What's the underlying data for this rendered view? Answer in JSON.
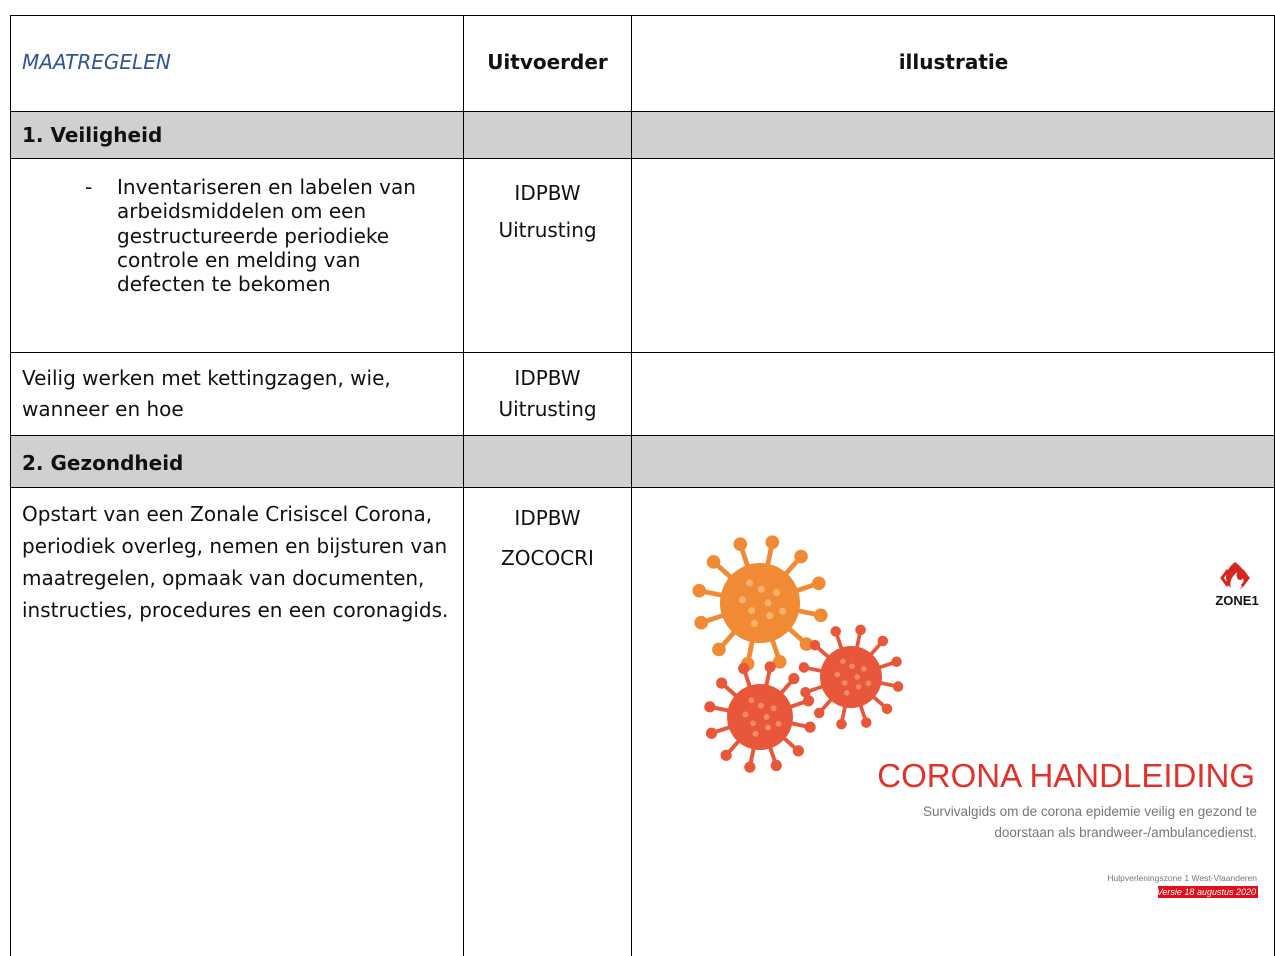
{
  "table": {
    "header": {
      "maatregelen": "MAATREGELEN",
      "uitvoerder": "Uitvoerder",
      "illustratie": "illustratie"
    },
    "sections": [
      {
        "title": "1. Veiligheid",
        "rows": [
          {
            "bullet": "-",
            "maatregel": "Inventariseren en labelen van arbeidsmiddelen om een gestructureerde periodieke controle en melding van defecten te bekomen",
            "uitvoerder": [
              "IDPBW",
              "Uitrusting"
            ]
          },
          {
            "maatregel": "Veilig werken met kettingzagen, wie, wanneer en hoe",
            "uitvoerder": [
              "IDPBW",
              "Uitrusting"
            ]
          }
        ]
      },
      {
        "title": "2. Gezondheid",
        "rows": [
          {
            "maatregel": "Opstart van een Zonale Crisiscel Corona, periodiek overleg, nemen en bijsturen van maatregelen, opmaak van documenten, instructies, procedures en een coronagids.",
            "uitvoerder": [
              "IDPBW",
              "ZOCOCRI"
            ],
            "illustratie": {
              "logo": "ZONE1",
              "title": "CORONA HANDLEIDING",
              "subtitle": [
                "Survivalgids om de corona epidemie veilig en gezond te",
                "doorstaan als brandweer-/ambulancedienst."
              ],
              "organisation": "Hulpverleningszone 1 West-Vlaanderen",
              "version": "Versie 18 augustus 2020"
            }
          }
        ]
      }
    ]
  }
}
